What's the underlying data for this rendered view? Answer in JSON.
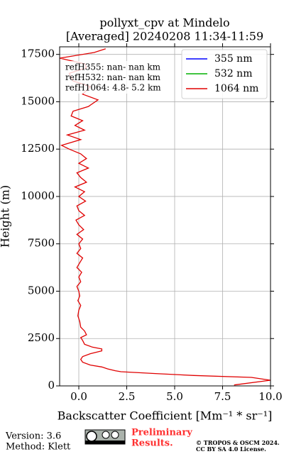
{
  "chart_data": {
    "type": "line",
    "title": "pollyxt_cpv at Mindelo",
    "subtitle": "[Averaged] 20240208 11:34-11:59",
    "x_label": "Backscatter Coefficient [Mm⁻¹ * sr⁻¹]",
    "y_label": "Height (m)",
    "annotations": [
      "refH355:  nan- nan km",
      "refH532:  nan- nan km",
      "refH1064:  4.8- 5.2 km"
    ],
    "xlim": [
      -1,
      10
    ],
    "xticks": [
      {
        "value": 0,
        "label": "0.0"
      },
      {
        "value": 2.5,
        "label": "2.5"
      },
      {
        "value": 5,
        "label": "5.0"
      },
      {
        "value": 7.5,
        "label": "7.5"
      },
      {
        "value": 10,
        "label": "10.0"
      }
    ],
    "ylim": [
      0,
      17900
    ],
    "yticks": [
      0,
      2500,
      5000,
      7500,
      10000,
      12500,
      15000,
      17500
    ],
    "grid": true,
    "legend": "upper right",
    "y": [
      50,
      300,
      450,
      550,
      650,
      750,
      800,
      900,
      1000,
      1100,
      1250,
      1400,
      1550,
      1700,
      1850,
      1950,
      2050,
      2200,
      2400,
      2550,
      2700,
      2900,
      3100,
      3400,
      3700,
      4000,
      4250,
      4500,
      4750,
      5000,
      5250,
      5500,
      5750,
      6000,
      6250,
      6500,
      6750,
      7000,
      7250,
      7500,
      7750,
      8000,
      8250,
      8500,
      8750,
      9000,
      9250,
      9500,
      9750,
      10000,
      10250,
      10500,
      10750,
      11000,
      11250,
      11500,
      11750,
      12000,
      12250,
      12500,
      12700,
      13000,
      13250,
      13500,
      13750,
      14000,
      14250,
      14500,
      14750,
      15100,
      15400,
      15800,
      16100,
      16500,
      16800,
      17000,
      17300,
      17600,
      17800
    ],
    "series": [
      {
        "name": "355 nm",
        "color": "#0000ff",
        "values": [
          null,
          null,
          null,
          null,
          null,
          null,
          null,
          null,
          null,
          null,
          null,
          null,
          null,
          null,
          null,
          null,
          null,
          null,
          null,
          null,
          null,
          null,
          null,
          null,
          null,
          null,
          null,
          null,
          null,
          null,
          null,
          null,
          null,
          null,
          null,
          null,
          null,
          null,
          null,
          null,
          null,
          null,
          null,
          null,
          null,
          null,
          null,
          null,
          null,
          null,
          null,
          null,
          null,
          null,
          null,
          null,
          null,
          null,
          null,
          null,
          null,
          null,
          null,
          null,
          null,
          null,
          null,
          null,
          null,
          null,
          null,
          null,
          null,
          null,
          null,
          null,
          null,
          null,
          null
        ]
      },
      {
        "name": "532 nm",
        "color": "#00b000",
        "values": [
          null,
          null,
          null,
          null,
          null,
          null,
          null,
          null,
          null,
          null,
          null,
          null,
          null,
          null,
          null,
          null,
          null,
          null,
          null,
          null,
          null,
          null,
          null,
          null,
          null,
          null,
          null,
          null,
          null,
          null,
          null,
          null,
          null,
          null,
          null,
          null,
          null,
          null,
          null,
          null,
          null,
          null,
          null,
          null,
          null,
          null,
          null,
          null,
          null,
          null,
          null,
          null,
          null,
          null,
          null,
          null,
          null,
          null,
          null,
          null,
          null,
          null,
          null,
          null,
          null,
          null,
          null,
          null,
          null,
          null,
          null,
          null,
          null,
          null,
          null,
          null,
          null,
          null,
          null
        ]
      },
      {
        "name": "1064 nm",
        "color": "#e00000",
        "values": [
          8.1,
          10.0,
          9.0,
          6.0,
          4.0,
          2.2,
          1.9,
          1.5,
          1.2,
          0.6,
          0.2,
          0.1,
          0.2,
          0.6,
          1.2,
          1.2,
          0.7,
          0.3,
          0.2,
          0.1,
          0.4,
          0.3,
          0.1,
          0.05,
          -0.05,
          0.0,
          0.1,
          -0.05,
          0.05,
          0.0,
          -0.1,
          0.1,
          0.0,
          0.15,
          -0.1,
          0.05,
          0.2,
          -0.1,
          0.1,
          0.0,
          0.2,
          -0.1,
          0.25,
          0.0,
          -0.15,
          0.3,
          0.0,
          -0.1,
          0.35,
          0.0,
          0.3,
          -0.2,
          0.4,
          0.1,
          -0.1,
          0.5,
          0.0,
          0.4,
          0.1,
          -0.5,
          -0.9,
          0.1,
          -0.6,
          0.3,
          -0.2,
          0.2,
          -0.4,
          -0.3,
          0.5,
          1.0,
          0.2,
          0.6,
          -0.3,
          -0.5,
          0.4,
          0.3,
          -1.0,
          0.8,
          1.4
        ]
      }
    ]
  },
  "footer": {
    "version": "Version: 3.6",
    "method": "Method: Klett",
    "notice": [
      "Preliminary",
      "Results."
    ],
    "copyright": [
      "© TROPOS & OSCM 2024.",
      "CC BY SA 4.0 License."
    ]
  }
}
